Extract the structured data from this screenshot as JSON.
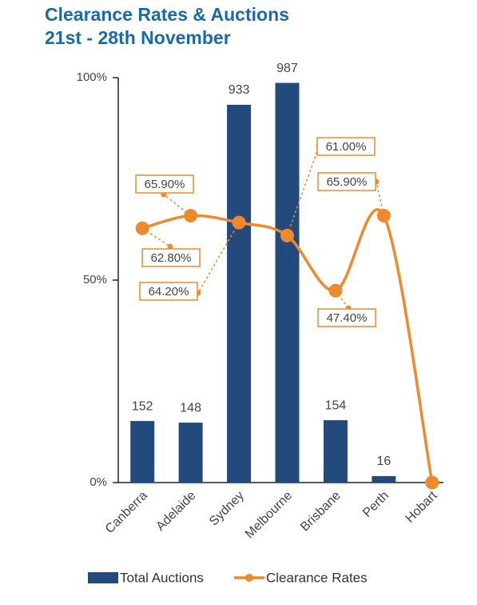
{
  "chart_data": {
    "type": "bar",
    "title": "Clearance Rates & Auctions",
    "subtitle": "21st - 28th November",
    "categories": [
      "Canberra",
      "Adelaide",
      "Sydney",
      "Melbourne",
      "Brisbane",
      "Perth",
      "Hobart"
    ],
    "series": [
      {
        "name": "Total Auctions",
        "type": "bar",
        "axis": "y2",
        "color": "#234a7c",
        "values": [
          152,
          148,
          933,
          987,
          154,
          16,
          null
        ]
      },
      {
        "name": "Clearance Rates",
        "type": "line",
        "color": "#ee8a2c",
        "values": [
          62.8,
          65.9,
          64.2,
          61.0,
          47.4,
          65.9,
          0
        ],
        "value_labels": [
          "62.80%",
          "65.90%",
          "64.20%",
          "61.00%",
          "47.40%",
          "65.90%",
          null
        ]
      }
    ],
    "ylim": [
      0,
      100
    ],
    "yticks": [
      {
        "value": 0,
        "label": "0%"
      },
      {
        "value": 50,
        "label": "50%"
      },
      {
        "value": 100,
        "label": "100%"
      }
    ],
    "y2lim": [
      0,
      1000
    ],
    "legend": "bottom"
  }
}
